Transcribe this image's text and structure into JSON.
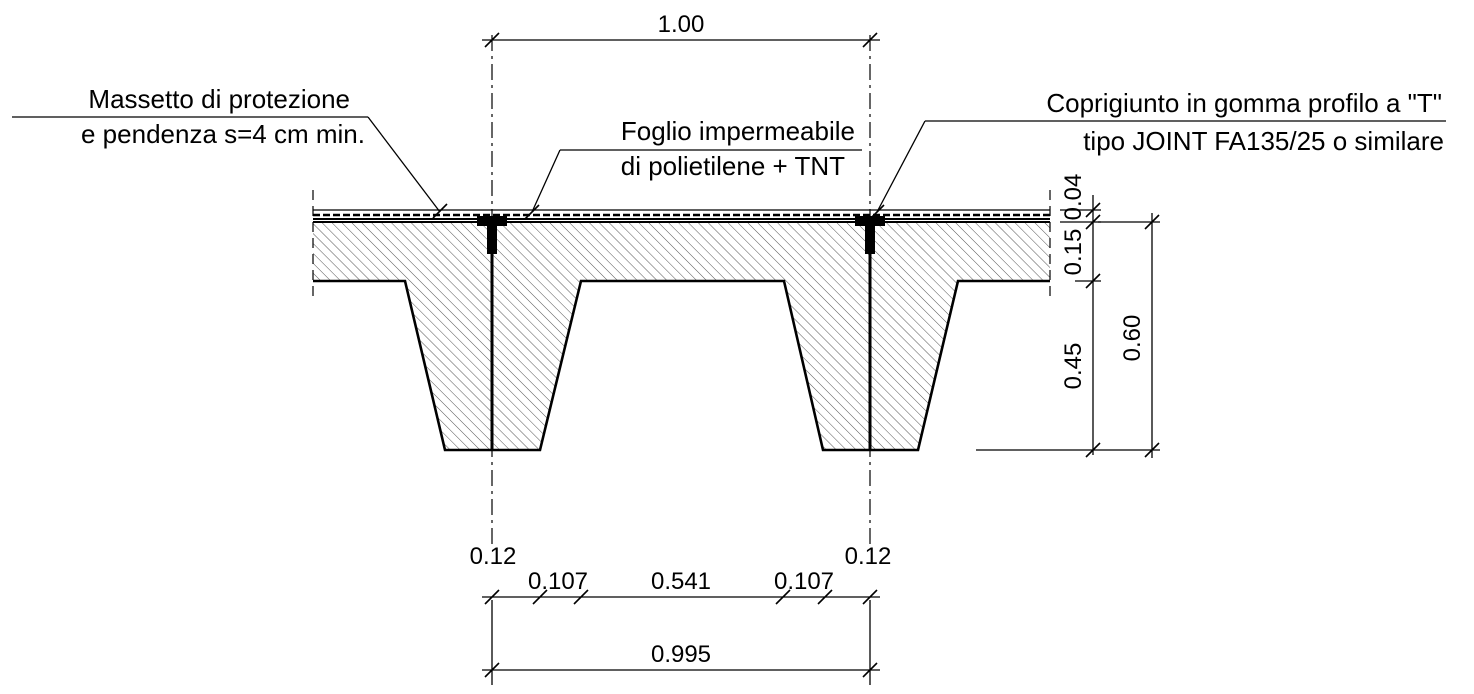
{
  "labels": {
    "screed_line1": "Massetto di protezione",
    "screed_line2": "e pendenza s=4 cm min.",
    "membrane_line1": "Foglio impermeabile",
    "membrane_line2": "di polietilene + TNT",
    "joint_line1": "Coprigiunto in gomma profilo a \"T\"",
    "joint_line2": "tipo  JOINT  FA135/25  o  similare"
  },
  "dimensions": {
    "top_span": "1.00",
    "screed_thickness": "0.04",
    "slab_thickness": "0.15",
    "rib_height": "0.45",
    "total_height": "0.60",
    "rib_left": "0.12",
    "taper_left": "0.107",
    "gap": "0.541",
    "taper_right": "0.107",
    "rib_right": "0.12",
    "bottom_span": "0.995"
  },
  "colors": {
    "line": "#000000",
    "hatch": "#555555",
    "background": "#ffffff"
  }
}
